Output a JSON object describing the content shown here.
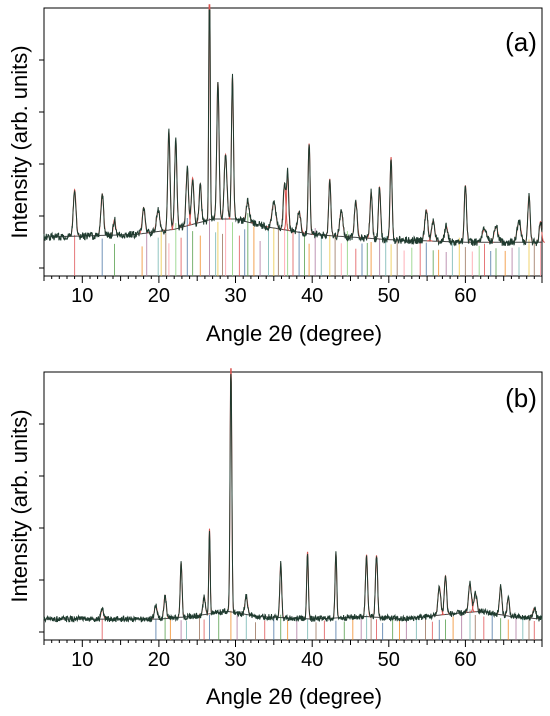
{
  "chart_data": [
    {
      "type": "line",
      "panel_label": "(a)",
      "xlabel": "Angle 2θ (degree)",
      "ylabel": "Intensity (arb. units)",
      "xlim": [
        5,
        70
      ],
      "x_ticks": [
        10,
        20,
        30,
        40,
        50,
        60
      ],
      "y_major_count": 5,
      "grid": false,
      "legend": "none",
      "background": [
        [
          5,
          0.12
        ],
        [
          17,
          0.13
        ],
        [
          22,
          0.15
        ],
        [
          27,
          0.19
        ],
        [
          30,
          0.19
        ],
        [
          34,
          0.16
        ],
        [
          40,
          0.13
        ],
        [
          50,
          0.11
        ],
        [
          60,
          0.1
        ],
        [
          70,
          0.1
        ]
      ],
      "noise": 0.015,
      "peaks": [
        [
          9.0,
          0.18,
          0.18
        ],
        [
          12.6,
          0.16,
          0.18
        ],
        [
          14.2,
          0.06,
          0.15
        ],
        [
          18.0,
          0.1,
          0.18
        ],
        [
          19.9,
          0.08,
          0.22
        ],
        [
          21.3,
          0.38,
          0.15
        ],
        [
          22.2,
          0.34,
          0.15
        ],
        [
          23.7,
          0.22,
          0.16
        ],
        [
          24.4,
          0.18,
          0.16
        ],
        [
          25.4,
          0.15,
          0.15
        ],
        [
          26.6,
          1.0,
          0.09
        ],
        [
          27.7,
          0.53,
          0.15
        ],
        [
          28.7,
          0.25,
          0.18
        ],
        [
          29.6,
          0.55,
          0.13
        ],
        [
          31.6,
          0.08,
          0.2
        ],
        [
          35.0,
          0.1,
          0.25
        ],
        [
          36.4,
          0.18,
          0.16
        ],
        [
          36.8,
          0.22,
          0.14
        ],
        [
          38.3,
          0.08,
          0.2
        ],
        [
          39.6,
          0.35,
          0.13
        ],
        [
          42.3,
          0.22,
          0.14
        ],
        [
          43.8,
          0.1,
          0.2
        ],
        [
          45.7,
          0.14,
          0.18
        ],
        [
          47.7,
          0.18,
          0.15
        ],
        [
          48.8,
          0.2,
          0.14
        ],
        [
          50.3,
          0.32,
          0.13
        ],
        [
          54.9,
          0.12,
          0.2
        ],
        [
          55.8,
          0.08,
          0.2
        ],
        [
          57.5,
          0.06,
          0.2
        ],
        [
          60.0,
          0.22,
          0.15
        ],
        [
          62.5,
          0.05,
          0.3
        ],
        [
          64.0,
          0.06,
          0.25
        ],
        [
          67.0,
          0.08,
          0.25
        ],
        [
          68.3,
          0.18,
          0.15
        ],
        [
          69.8,
          0.08,
          0.15
        ]
      ],
      "reference_lines": [
        9.0,
        12.6,
        14.2,
        17.8,
        18.4,
        19.9,
        20.3,
        20.9,
        21.3,
        22.2,
        22.9,
        23.7,
        24.4,
        25.4,
        26.6,
        27.4,
        27.7,
        28.3,
        28.7,
        29.6,
        30.5,
        31.2,
        31.6,
        32.4,
        33.2,
        34.3,
        35.0,
        35.6,
        36.4,
        36.8,
        37.5,
        38.3,
        39.0,
        39.6,
        40.4,
        41.2,
        42.3,
        43.0,
        43.8,
        44.6,
        45.7,
        46.5,
        47.2,
        47.7,
        48.8,
        49.6,
        50.3,
        51.1,
        52.0,
        53.0,
        54.1,
        54.9,
        55.8,
        56.5,
        57.5,
        58.3,
        59.2,
        60.0,
        60.9,
        61.8,
        62.5,
        63.3,
        64.0,
        65.2,
        66.1,
        67.0,
        68.3,
        69.0,
        69.8
      ],
      "reference_colors": [
        "#e15759",
        "#4e79a7",
        "#59a14f",
        "#f28e2b",
        "#b07aa1",
        "#76b7b2",
        "#edc948",
        "#9c755f",
        "#ff9da7",
        "#8cd17d"
      ]
    },
    {
      "type": "line",
      "panel_label": "(b)",
      "xlabel": "Angle 2θ (degree)",
      "ylabel": "Intensity (arb. units)",
      "xlim": [
        5,
        70
      ],
      "x_ticks": [
        10,
        20,
        30,
        40,
        50,
        60
      ],
      "y_major_count": 5,
      "grid": false,
      "legend": "none",
      "background": [
        [
          5,
          0.05
        ],
        [
          20,
          0.05
        ],
        [
          24,
          0.06
        ],
        [
          29,
          0.08
        ],
        [
          33,
          0.06
        ],
        [
          40,
          0.05
        ],
        [
          47,
          0.06
        ],
        [
          52,
          0.05
        ],
        [
          58,
          0.07
        ],
        [
          62,
          0.08
        ],
        [
          66,
          0.06
        ],
        [
          70,
          0.05
        ]
      ],
      "noise": 0.012,
      "peaks": [
        [
          12.6,
          0.04,
          0.15
        ],
        [
          19.6,
          0.05,
          0.2
        ],
        [
          20.8,
          0.09,
          0.15
        ],
        [
          22.9,
          0.21,
          0.12
        ],
        [
          25.9,
          0.07,
          0.15
        ],
        [
          26.6,
          0.33,
          0.09
        ],
        [
          29.4,
          1.0,
          0.11
        ],
        [
          31.4,
          0.07,
          0.18
        ],
        [
          35.9,
          0.21,
          0.12
        ],
        [
          39.4,
          0.26,
          0.11
        ],
        [
          43.1,
          0.25,
          0.11
        ],
        [
          47.1,
          0.24,
          0.14
        ],
        [
          48.4,
          0.24,
          0.14
        ],
        [
          56.6,
          0.11,
          0.18
        ],
        [
          57.4,
          0.15,
          0.15
        ],
        [
          60.6,
          0.11,
          0.18
        ],
        [
          61.3,
          0.07,
          0.2
        ],
        [
          64.6,
          0.11,
          0.15
        ],
        [
          65.6,
          0.07,
          0.15
        ],
        [
          69.0,
          0.04,
          0.2
        ]
      ],
      "reference_lines": [
        12.6,
        19.6,
        20.8,
        21.5,
        22.9,
        23.6,
        25.3,
        25.9,
        26.6,
        27.8,
        29.4,
        30.2,
        31.4,
        32.6,
        33.8,
        35.0,
        35.9,
        36.8,
        38.0,
        39.4,
        40.5,
        41.6,
        43.1,
        44.2,
        45.3,
        46.4,
        47.1,
        47.7,
        48.4,
        49.2,
        50.5,
        51.4,
        52.3,
        53.6,
        54.8,
        55.7,
        56.6,
        57.4,
        58.4,
        59.5,
        60.6,
        61.3,
        62.4,
        63.5,
        64.6,
        65.6,
        66.6,
        67.5,
        68.3,
        69.0
      ],
      "reference_colors": [
        "#e15759",
        "#4e79a7",
        "#59a14f",
        "#f28e2b",
        "#b07aa1",
        "#76b7b2",
        "#9c755f"
      ]
    }
  ]
}
